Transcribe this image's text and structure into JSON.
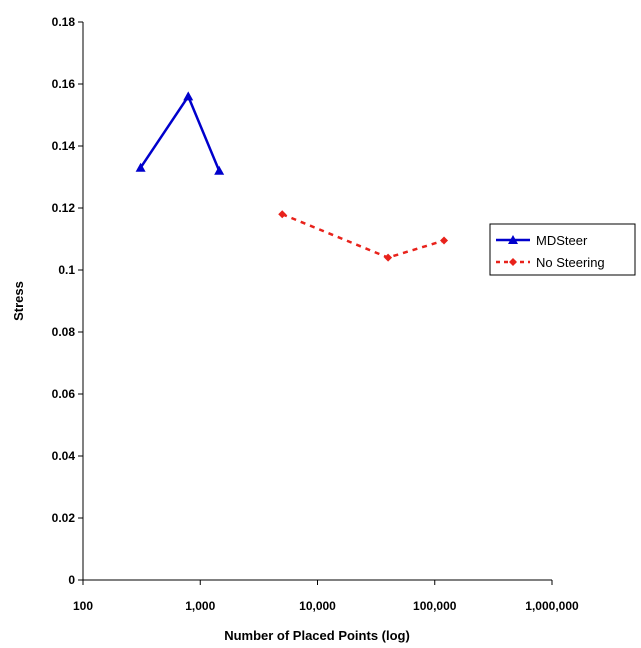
{
  "chart_data": {
    "type": "scatter",
    "title": "",
    "xlabel": "Number of Placed Points (log)",
    "ylabel": "Stress",
    "xscale": "log",
    "xlim": [
      100,
      1000000
    ],
    "ylim": [
      0,
      0.18
    ],
    "xticks": [
      100,
      1000,
      10000,
      100000,
      1000000
    ],
    "xtick_labels": [
      "100",
      "1,000",
      "10,000",
      "100,000",
      "1,000,000"
    ],
    "yticks": [
      0,
      0.02,
      0.04,
      0.06,
      0.08,
      0.1,
      0.12,
      0.14,
      0.16,
      0.18
    ],
    "ytick_labels": [
      "0",
      "0.02",
      "0.04",
      "0.06",
      "0.08",
      "0.1",
      "0.12",
      "0.14",
      "0.16",
      "0.18"
    ],
    "grid": false,
    "legend_position": "right",
    "series": [
      {
        "name": "MDSteer",
        "color": "#0000CC",
        "line_style": "solid",
        "marker": "triangle",
        "points": [
          [
            310,
            0.133
          ],
          [
            790,
            0.156
          ],
          [
            1450,
            0.132
          ]
        ]
      },
      {
        "name": "No Steering",
        "color": "#E8221B",
        "line_style": "dotted",
        "marker": "diamond",
        "points": [
          [
            5000,
            0.118
          ],
          [
            40000,
            0.104
          ],
          [
            120000,
            0.1095
          ]
        ]
      }
    ]
  }
}
